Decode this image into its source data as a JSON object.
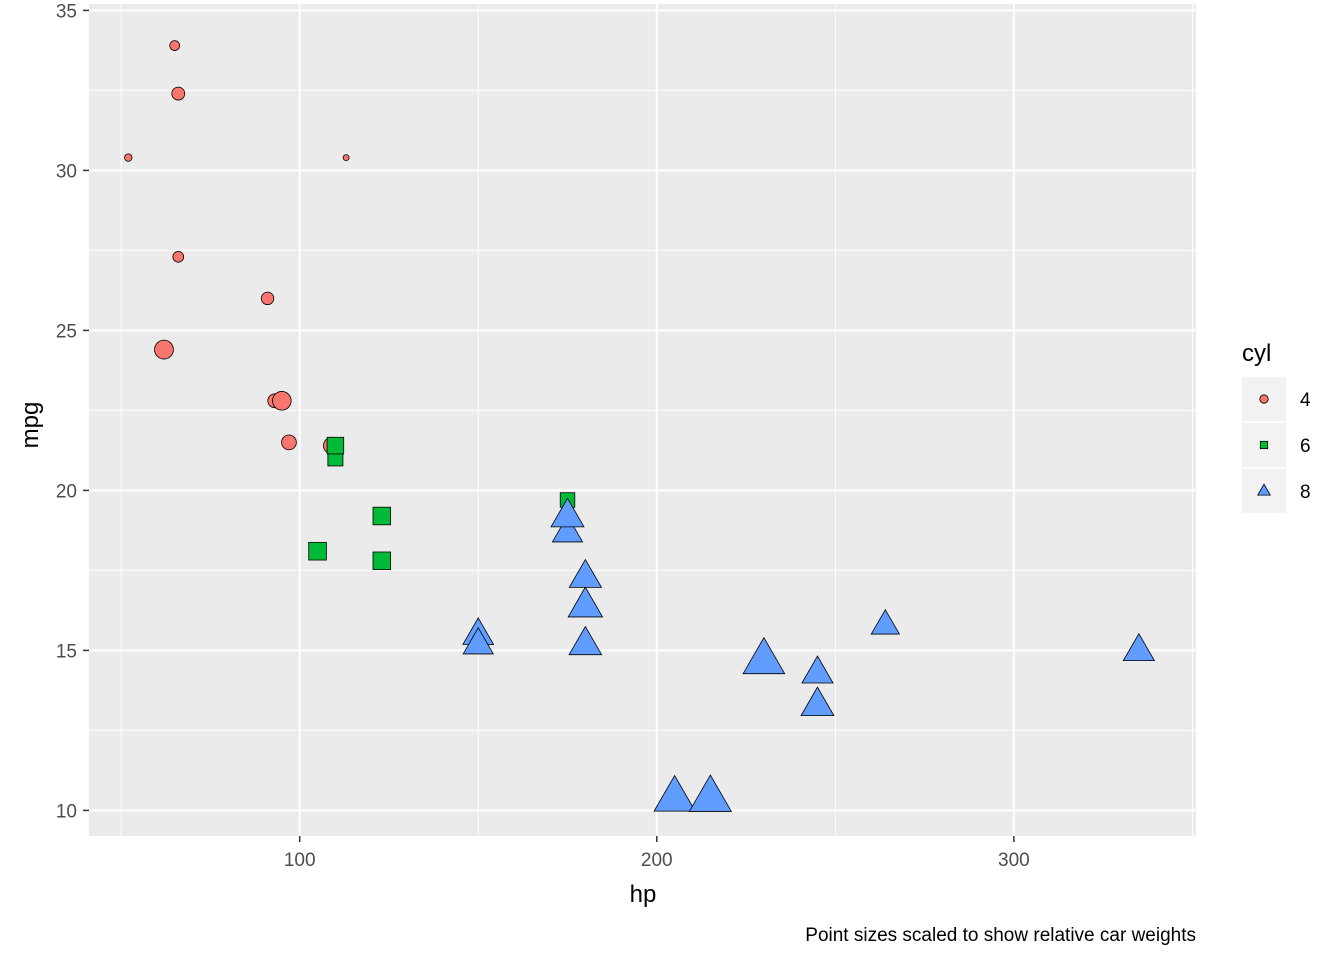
{
  "chart_data": {
    "type": "scatter",
    "xlabel": "hp",
    "ylabel": "mpg",
    "caption": "Point sizes scaled to show relative car weights",
    "xlim": [
      41,
      351
    ],
    "ylim": [
      9.2,
      35.2
    ],
    "x_ticks": [
      100,
      200,
      300
    ],
    "y_ticks": [
      10,
      15,
      20,
      25,
      30,
      35
    ],
    "grid": true,
    "legend": {
      "title": "cyl",
      "position": "right",
      "entries": [
        {
          "label": "4",
          "shape": "circle",
          "color": "#F8766D"
        },
        {
          "label": "6",
          "shape": "square",
          "color": "#00BA38"
        },
        {
          "label": "8",
          "shape": "triangle",
          "color": "#619CFF"
        }
      ]
    },
    "size_variable": "wt",
    "size_range": [
      1.513,
      5.424
    ],
    "series": [
      {
        "name": "4",
        "points": [
          {
            "x": 93,
            "y": 22.8,
            "wt": 2.32
          },
          {
            "x": 62,
            "y": 24.4,
            "wt": 3.19
          },
          {
            "x": 95,
            "y": 22.8,
            "wt": 3.15
          },
          {
            "x": 66,
            "y": 32.4,
            "wt": 2.2
          },
          {
            "x": 52,
            "y": 30.4,
            "wt": 1.615
          },
          {
            "x": 65,
            "y": 33.9,
            "wt": 1.835
          },
          {
            "x": 97,
            "y": 21.5,
            "wt": 2.465
          },
          {
            "x": 66,
            "y": 27.3,
            "wt": 1.935
          },
          {
            "x": 91,
            "y": 26.0,
            "wt": 2.14
          },
          {
            "x": 113,
            "y": 30.4,
            "wt": 1.513
          },
          {
            "x": 109,
            "y": 21.4,
            "wt": 2.78
          }
        ]
      },
      {
        "name": "6",
        "points": [
          {
            "x": 110,
            "y": 21.0,
            "wt": 2.62
          },
          {
            "x": 110,
            "y": 21.0,
            "wt": 2.875
          },
          {
            "x": 110,
            "y": 21.4,
            "wt": 3.215
          },
          {
            "x": 105,
            "y": 18.1,
            "wt": 3.46
          },
          {
            "x": 123,
            "y": 19.2,
            "wt": 3.44
          },
          {
            "x": 123,
            "y": 17.8,
            "wt": 3.44
          },
          {
            "x": 175,
            "y": 19.7,
            "wt": 2.77
          }
        ]
      },
      {
        "name": "8",
        "points": [
          {
            "x": 175,
            "y": 18.7,
            "wt": 3.44
          },
          {
            "x": 245,
            "y": 14.3,
            "wt": 3.57
          },
          {
            "x": 180,
            "y": 16.4,
            "wt": 4.07
          },
          {
            "x": 180,
            "y": 17.3,
            "wt": 3.73
          },
          {
            "x": 180,
            "y": 15.2,
            "wt": 3.78
          },
          {
            "x": 205,
            "y": 10.4,
            "wt": 5.25
          },
          {
            "x": 215,
            "y": 10.4,
            "wt": 5.424
          },
          {
            "x": 230,
            "y": 14.7,
            "wt": 5.345
          },
          {
            "x": 150,
            "y": 15.5,
            "wt": 3.52
          },
          {
            "x": 150,
            "y": 15.2,
            "wt": 3.435
          },
          {
            "x": 245,
            "y": 13.3,
            "wt": 3.84
          },
          {
            "x": 175,
            "y": 19.2,
            "wt": 3.845
          },
          {
            "x": 264,
            "y": 15.8,
            "wt": 3.17
          },
          {
            "x": 335,
            "y": 15.0,
            "wt": 3.57
          }
        ]
      }
    ]
  }
}
